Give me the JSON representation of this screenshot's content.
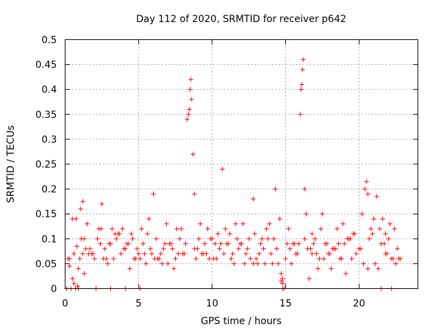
{
  "chart_data": {
    "type": "scatter",
    "title": "Day 112 of 2020, SRMTID for receiver p642",
    "xlabel": "GPS time / hours",
    "ylabel": "SRMTID / TECUs",
    "xlim": [
      0,
      24
    ],
    "ylim": [
      0,
      0.5
    ],
    "grid": true,
    "marker": "+",
    "color": "#ff0000",
    "x_ticks": [
      {
        "value": 0,
        "label": "0"
      },
      {
        "value": 5,
        "label": "5"
      },
      {
        "value": 10,
        "label": "10"
      },
      {
        "value": 15,
        "label": "15"
      },
      {
        "value": 20,
        "label": "20"
      }
    ],
    "y_ticks": [
      {
        "value": 0,
        "label": "0"
      },
      {
        "value": 0.05,
        "label": "0.05"
      },
      {
        "value": 0.1,
        "label": "0.1"
      },
      {
        "value": 0.15,
        "label": "0.15"
      },
      {
        "value": 0.2,
        "label": "0.2"
      },
      {
        "value": 0.25,
        "label": "0.25"
      },
      {
        "value": 0.3,
        "label": "0.3"
      },
      {
        "value": 0.35,
        "label": "0.35"
      },
      {
        "value": 0.4,
        "label": "0.4"
      },
      {
        "value": 0.45,
        "label": "0.45"
      },
      {
        "value": 0.5,
        "label": "0.5"
      }
    ],
    "series": [
      {
        "name": "SRMTID",
        "x": [
          0.1,
          0.2,
          0.3,
          0.4,
          0.5,
          0.6,
          0.7,
          0.75,
          0.8,
          0.85,
          0.9,
          1.0,
          1.1,
          1.2,
          1.3,
          1.5,
          1.7,
          1.9,
          2.0,
          2.1,
          2.2,
          2.5,
          2.8,
          3.0,
          3.3,
          3.5,
          3.8,
          4.0,
          4.2,
          4.5,
          4.8,
          5.0,
          5.3,
          5.5,
          5.8,
          6.0,
          6.3,
          6.5,
          6.8,
          7.0,
          7.3,
          7.5,
          7.8,
          8.0,
          8.2,
          8.3,
          8.4,
          8.45,
          8.5,
          8.55,
          8.6,
          8.7,
          8.8,
          9.0,
          9.3,
          9.5,
          9.8,
          10.0,
          10.3,
          10.5,
          10.7,
          10.8,
          11.0,
          11.3,
          11.5,
          11.8,
          12.0,
          12.3,
          12.5,
          12.8,
          13.0,
          13.3,
          13.5,
          13.8,
          14.0,
          14.3,
          14.5,
          14.7,
          14.8,
          14.9,
          15.0,
          15.3,
          15.5,
          15.8,
          16.0,
          16.05,
          16.1,
          16.15,
          16.2,
          16.3,
          16.5,
          16.8,
          17.0,
          17.3,
          17.5,
          17.8,
          18.0,
          18.3,
          18.5,
          18.8,
          19.0,
          19.3,
          19.5,
          19.8,
          20.0,
          20.2,
          20.4,
          20.5,
          20.6,
          20.8,
          21.0,
          21.2,
          21.5,
          21.8,
          22.0,
          22.2,
          22.5,
          1.05,
          2.45,
          3.1,
          4.6,
          5.6,
          6.2,
          7.6,
          9.4,
          10.6,
          11.6,
          12.4,
          13.6,
          14.2,
          15.6,
          16.4,
          17.4,
          18.4,
          19.6,
          20.7,
          21.6,
          22.4,
          1.4,
          2.6,
          3.6,
          4.4,
          5.2,
          6.6,
          7.2,
          8.8,
          9.6,
          11.2,
          12.8,
          13.2,
          14.6,
          15.2,
          16.7,
          17.7,
          18.7,
          19.2,
          20.3,
          21.3,
          22.3,
          0.5,
          1.6,
          2.9,
          3.9,
          4.9,
          5.9,
          6.9,
          7.9,
          8.9,
          9.9,
          10.9,
          11.9,
          12.9,
          13.9,
          14.4,
          15.4,
          16.6,
          17.6,
          18.6,
          19.4,
          20.9,
          21.9,
          22.6,
          0.3,
          0.9,
          1.8,
          2.3,
          3.4,
          4.3,
          5.4,
          6.4,
          7.4,
          9.2,
          10.2,
          11.4,
          12.2,
          13.4,
          15.7,
          16.9,
          17.2,
          18.2,
          19.7,
          21.1,
          21.7,
          22.1,
          1.2,
          2.7,
          3.2,
          4.7,
          5.1,
          6.7,
          7.7,
          9.1,
          10.4,
          11.1,
          12.6,
          13.7,
          14.1,
          15.1,
          16.3,
          17.1,
          18.1,
          19.1,
          20.1,
          21.4,
          22.7,
          0.6,
          1.3,
          2.4,
          3.7,
          4.1,
          5.7,
          6.1,
          7.1,
          8.1,
          9.7,
          10.1,
          11.7,
          12.1,
          13.1,
          14.8,
          15.9,
          16.8,
          17.9,
          18.9,
          20.6,
          21.8,
          22.8,
          3.1,
          4.1,
          5.1,
          21.5,
          22.2,
          14.8,
          14.7
        ],
        "y": [
          0.0,
          0.06,
          0.045,
          0.0,
          0.02,
          0.01,
          0.0,
          0.14,
          0.085,
          0.005,
          0.0,
          0.06,
          0.1,
          0.175,
          0.03,
          0.13,
          0.08,
          0.07,
          0.06,
          0.0,
          0.1,
          0.17,
          0.06,
          0.09,
          0.06,
          0.1,
          0.07,
          0.08,
          0.09,
          0.11,
          0.06,
          0.07,
          0.09,
          0.05,
          0.08,
          0.19,
          0.06,
          0.07,
          0.09,
          0.05,
          0.08,
          0.06,
          0.1,
          0.07,
          0.09,
          0.34,
          0.35,
          0.36,
          0.4,
          0.42,
          0.38,
          0.27,
          0.19,
          0.08,
          0.07,
          0.09,
          0.06,
          0.1,
          0.06,
          0.08,
          0.24,
          0.07,
          0.09,
          0.06,
          0.05,
          0.08,
          0.09,
          0.07,
          0.1,
          0.18,
          0.06,
          0.09,
          0.08,
          0.1,
          0.07,
          0.2,
          0.05,
          0.03,
          0.01,
          0.0,
          0.06,
          0.08,
          0.09,
          0.07,
          0.35,
          0.4,
          0.41,
          0.44,
          0.46,
          0.2,
          0.08,
          0.07,
          0.1,
          0.06,
          0.15,
          0.09,
          0.07,
          0.08,
          0.12,
          0.06,
          0.09,
          0.1,
          0.06,
          0.07,
          0.08,
          0.15,
          0.2,
          0.215,
          0.19,
          0.12,
          0.14,
          0.185,
          0.09,
          0.07,
          0.1,
          0.06,
          0.05,
          0.16,
          0.12,
          0.09,
          0.1,
          0.11,
          0.1,
          0.12,
          0.07,
          0.09,
          0.13,
          0.08,
          0.05,
          0.1,
          0.09,
          0.15,
          0.12,
          0.08,
          0.11,
          0.1,
          0.14,
          0.12,
          0.08,
          0.06,
          0.11,
          0.04,
          0.12,
          0.05,
          0.09,
          0.08,
          0.07,
          0.11,
          0.05,
          0.07,
          0.14,
          0.12,
          0.08,
          0.09,
          0.06,
          0.1,
          0.05,
          0.04,
          0.06,
          0.14,
          0.07,
          0.05,
          0.12,
          0.08,
          0.07,
          0.13,
          0.12,
          0.06,
          0.1,
          0.12,
          0.09,
          0.11,
          0.13,
          0.08,
          0.05,
          0.02,
          0.06,
          0.09,
          0.1,
          0.11,
          0.07,
          0.08,
          0.06,
          0.04,
          0.07,
          0.12,
          0.11,
          0.09,
          0.07,
          0.06,
          0.04,
          0.13,
          0.09,
          0.07,
          0.05,
          0.1,
          0.07,
          0.09,
          0.04,
          0.08,
          0.11,
          0.05,
          0.09,
          0.13,
          0.07,
          0.08,
          0.12,
          0.06,
          0.06,
          0.08,
          0.07,
          0.1,
          0.11,
          0.09,
          0.06,
          0.12,
          0.05,
          0.09,
          0.1,
          0.07,
          0.04,
          0.03,
          0.08,
          0.12,
          0.06,
          0.07,
          0.1,
          0.09,
          0.11,
          0.08,
          0.14,
          0.06,
          0.09,
          0.07,
          0.12,
          0.06,
          0.1,
          0.13,
          0.05,
          0.02,
          0.09,
          0.11,
          0.07,
          0.13,
          0.04,
          0.11,
          0.06,
          0.0,
          0.0,
          0.0,
          0.0,
          0.0,
          0.0,
          0.015
        ]
      }
    ]
  }
}
